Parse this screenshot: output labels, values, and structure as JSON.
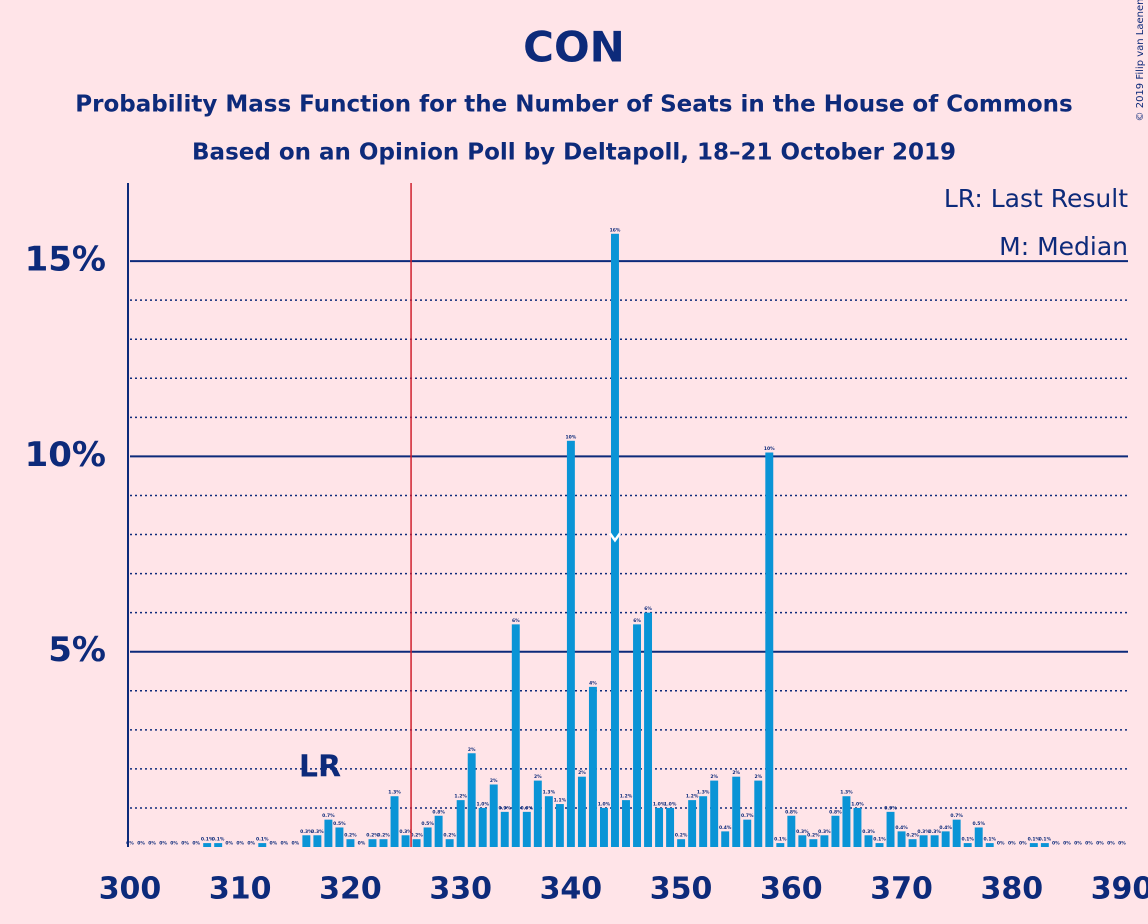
{
  "chart_data": {
    "type": "bar",
    "title": "CON",
    "subtitle": "Probability Mass Function for the Number of Seats in the House of Commons",
    "subtitle2": "Based on an Opinion Poll by Deltapoll, 18–21 October 2019",
    "legend": [
      "LR: Last Result",
      "M: Median"
    ],
    "copyright": "© 2019 Filip van Laenen",
    "lr_label": "LR",
    "last_result": 326,
    "median": 344,
    "color": "#0a94d6",
    "x": [
      300,
      301,
      302,
      303,
      304,
      305,
      306,
      307,
      308,
      309,
      310,
      311,
      312,
      313,
      314,
      315,
      316,
      317,
      318,
      319,
      320,
      321,
      322,
      323,
      324,
      325,
      326,
      327,
      328,
      329,
      330,
      331,
      332,
      333,
      334,
      335,
      336,
      337,
      338,
      339,
      340,
      341,
      342,
      343,
      344,
      345,
      346,
      347,
      348,
      349,
      350,
      351,
      352,
      353,
      354,
      355,
      356,
      357,
      358,
      359,
      360,
      361,
      362,
      363,
      364,
      365,
      366,
      367,
      368,
      369,
      370,
      371,
      372,
      373,
      374,
      375,
      376,
      377,
      378,
      379,
      380,
      381,
      382,
      383,
      384,
      385,
      386,
      387,
      388,
      389,
      390
    ],
    "values": [
      0,
      0,
      0,
      0,
      0,
      0,
      0,
      0.1,
      0.1,
      0,
      0,
      0,
      0.1,
      0,
      0,
      0,
      0.3,
      0.3,
      0.7,
      0.5,
      0.2,
      0,
      0.2,
      0.2,
      1.3,
      0.3,
      0.2,
      0.5,
      0.8,
      0.2,
      1.2,
      2.4,
      1.0,
      1.6,
      0.9,
      5.7,
      0.9,
      1.7,
      1.3,
      1.1,
      10.4,
      1.8,
      4.1,
      1.0,
      15.7,
      1.2,
      5.7,
      6.0,
      1.0,
      1.0,
      0.2,
      1.2,
      1.3,
      1.7,
      0.4,
      1.8,
      0.7,
      1.7,
      10.1,
      0.1,
      0.8,
      0.3,
      0.2,
      0.3,
      0.8,
      1.3,
      1.0,
      0.3,
      0.1,
      0.9,
      0.4,
      0.2,
      0.3,
      0.3,
      0.4,
      0.7,
      0.1,
      0.5,
      0.1,
      0,
      0,
      0,
      0.1,
      0.1,
      0,
      0,
      0,
      0,
      0,
      0,
      0
    ],
    "value_labels": [
      "0%",
      "0%",
      "0%",
      "0%",
      "0%",
      "0%",
      "0%",
      "0.1%",
      "0.1%",
      "0%",
      "0%",
      "0%",
      "0.1%",
      "0%",
      "0%",
      "0%",
      "0.3%",
      "0.3%",
      "0.7%",
      "0.5%",
      "0.2%",
      "0%",
      "0.2%",
      "0.2%",
      "1.3%",
      "0.3%",
      "0.2%",
      "0.5%",
      "0.8%",
      "0.2%",
      "1.2%",
      "2%",
      "1.0%",
      "2%",
      "0.9%",
      "6%",
      "0.9%",
      "2%",
      "1.3%",
      "1.1%",
      "10%",
      "2%",
      "4%",
      "1.0%",
      "16%",
      "1.2%",
      "6%",
      "6%",
      "1.0%",
      "1.0%",
      "0.2%",
      "1.2%",
      "1.3%",
      "2%",
      "0.4%",
      "2%",
      "0.7%",
      "2%",
      "10%",
      "0.1%",
      "0.8%",
      "0.3%",
      "0.2%",
      "0.3%",
      "0.8%",
      "1.3%",
      "1.0%",
      "0.3%",
      "0.1%",
      "0.9%",
      "0.4%",
      "0.2%",
      "0.3%",
      "0.3%",
      "0.4%",
      "0.7%",
      "0.1%",
      "0.5%",
      "0.1%",
      "0%",
      "0%",
      "0%",
      "0.1%",
      "0.1%",
      "0%",
      "0%",
      "0%",
      "0%",
      "0%",
      "0%",
      "0%"
    ],
    "xlim": [
      300,
      390
    ],
    "xticks": [
      300,
      310,
      320,
      330,
      340,
      350,
      360,
      370,
      380,
      390
    ],
    "ylim": [
      0,
      17
    ],
    "yticks": [
      {
        "value": 5,
        "label": "5%"
      },
      {
        "value": 10,
        "label": "10%"
      },
      {
        "value": 15,
        "label": "15%"
      }
    ],
    "minor_yticks": [
      1,
      2,
      3,
      4,
      6,
      7,
      8,
      9,
      11,
      12,
      13,
      14
    ],
    "grid": true
  }
}
